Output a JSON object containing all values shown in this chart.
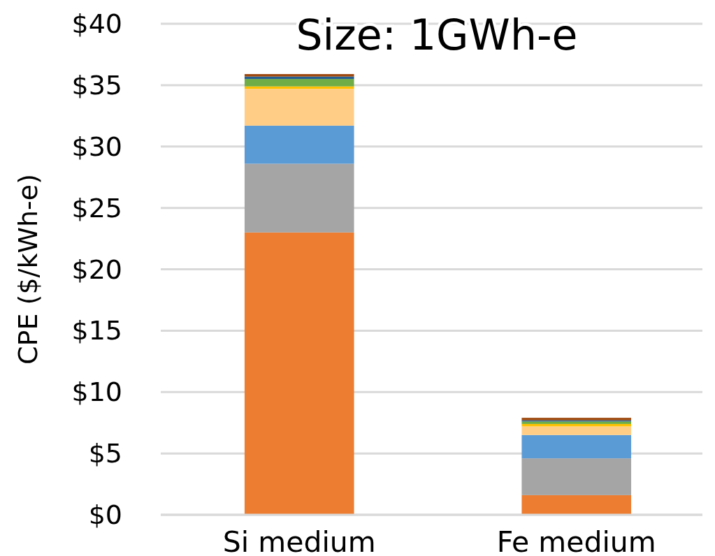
{
  "chart_data": {
    "type": "bar",
    "title": "Size: 1GWh-e",
    "ylabel": "CPE ($/kWh-e)",
    "categories": [
      "Si medium",
      "Fe medium"
    ],
    "stacked": true,
    "series": [
      {
        "color": "#ed7d31",
        "values": [
          23.0,
          1.6
        ]
      },
      {
        "color": "#a5a5a5",
        "values": [
          5.6,
          3.0
        ]
      },
      {
        "color": "#5b9bd5",
        "values": [
          3.1,
          1.9
        ]
      },
      {
        "color": "#ffcd85",
        "values": [
          3.0,
          0.7
        ]
      },
      {
        "color": "#ffc000",
        "values": [
          0.2,
          0.2
        ]
      },
      {
        "color": "#70ad47",
        "values": [
          0.6,
          0.2
        ]
      },
      {
        "color": "#255e91",
        "values": [
          0.2,
          0.1
        ]
      },
      {
        "color": "#9e480e",
        "values": [
          0.2,
          0.2
        ]
      }
    ],
    "ylim": [
      0,
      40
    ],
    "yticks": [
      {
        "value": 0,
        "label": "$0"
      },
      {
        "value": 5,
        "label": "$5"
      },
      {
        "value": 10,
        "label": "$10"
      },
      {
        "value": 15,
        "label": "$15"
      },
      {
        "value": 20,
        "label": "$20"
      },
      {
        "value": 25,
        "label": "$25"
      },
      {
        "value": 30,
        "label": "$30"
      },
      {
        "value": 35,
        "label": "$35"
      },
      {
        "value": 40,
        "label": "$40"
      }
    ],
    "grid": "y"
  }
}
